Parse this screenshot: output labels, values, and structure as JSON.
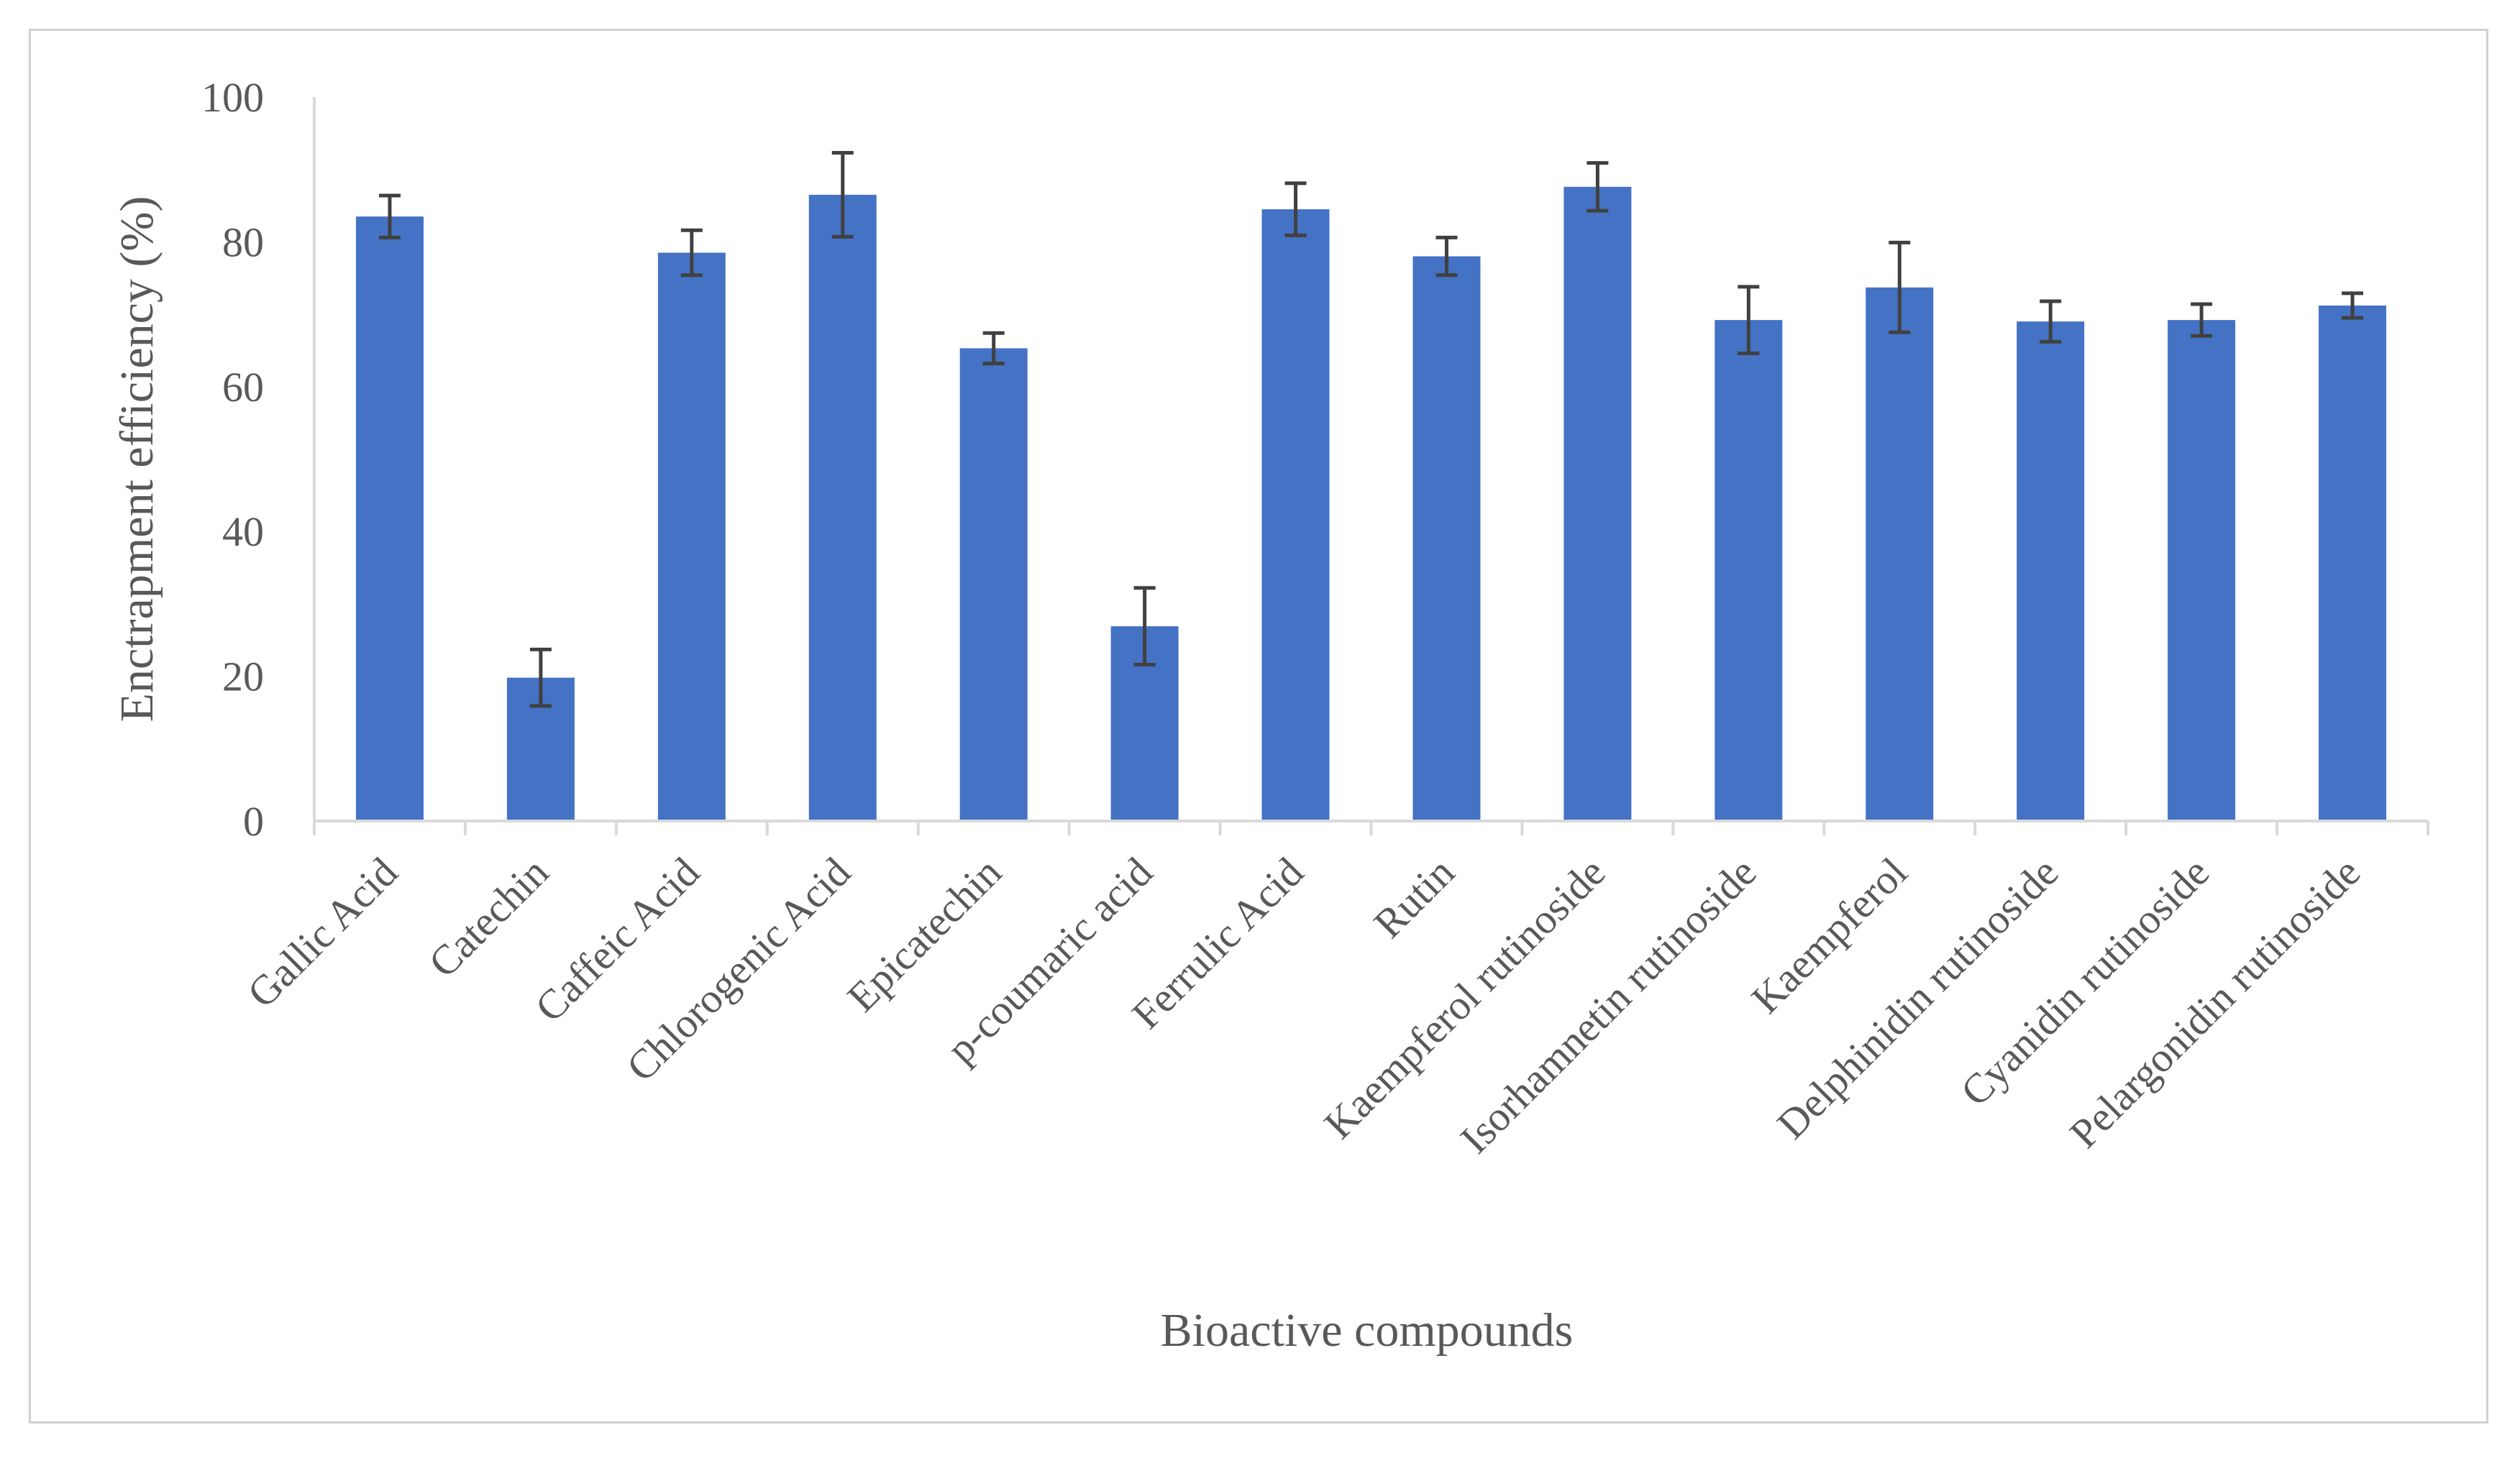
{
  "chart_data": {
    "type": "bar",
    "title": "",
    "xlabel": "Bioactive compounds",
    "ylabel": "Enctrapment efficiency (%)",
    "ylim": [
      0,
      100
    ],
    "yticks": [
      0,
      20,
      40,
      60,
      80,
      100
    ],
    "grid": false,
    "legend": "none",
    "bar_color": "#4472C4",
    "error_bar_color": "#404040",
    "categories": [
      "Gallic Acid",
      "Catechin",
      "Caffeic Acid",
      "Chlorogenic Acid",
      "Epicatechin",
      "p-coumaric acid",
      "Ferrulic Acid",
      "Rutin",
      "Kaempferol rutinoside",
      "Isorhamnetin rutinoside",
      "Kaempferol",
      "Delphinidin rutinoside",
      "Cyanidin rutinoside",
      "Pelargonidin rutinoside"
    ],
    "values": [
      83.5,
      19.8,
      78.5,
      86.5,
      65.3,
      26.9,
      84.5,
      78.0,
      87.6,
      69.2,
      73.7,
      69.0,
      69.2,
      71.2
    ],
    "errors": [
      2.9,
      3.9,
      3.1,
      5.8,
      2.1,
      5.3,
      3.6,
      2.6,
      3.3,
      4.6,
      6.2,
      2.8,
      2.2,
      1.7
    ]
  }
}
